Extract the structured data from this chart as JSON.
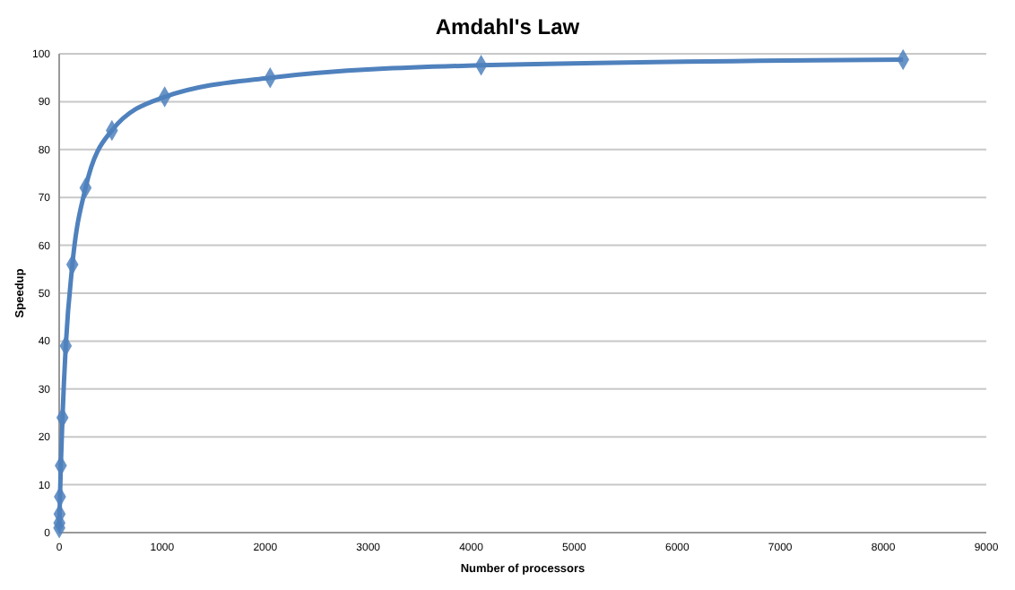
{
  "chart_data": {
    "type": "line",
    "title": "Amdahl's Law",
    "xlabel": "Number of processors",
    "ylabel": "Speedup",
    "x": [
      1,
      2,
      4,
      8,
      16,
      32,
      64,
      128,
      256,
      512,
      1024,
      2048,
      4096,
      8192
    ],
    "series": [
      {
        "color": "#4f81bd",
        "values": [
          1,
          2,
          3.9,
          7.5,
          14,
          24,
          39,
          56,
          72,
          84,
          91,
          95,
          97.6,
          98.8
        ]
      }
    ],
    "xlim": [
      0,
      9000
    ],
    "xticks": [
      0,
      1000,
      2000,
      3000,
      4000,
      5000,
      6000,
      7000,
      8000,
      9000
    ],
    "ylim": [
      0,
      100
    ],
    "yticks": [
      0,
      10,
      20,
      30,
      40,
      50,
      60,
      70,
      80,
      90,
      100
    ],
    "grid": "y",
    "marker": "diamond",
    "line_style": "solid"
  }
}
